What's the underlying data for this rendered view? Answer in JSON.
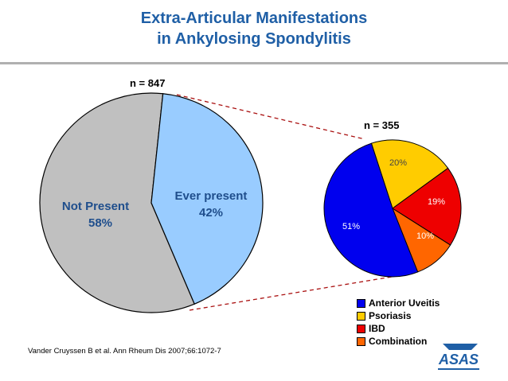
{
  "title_line1": "Extra-Articular Manifestations",
  "title_line2": "in Ankylosing Spondylitis",
  "citation": "Vander Cruyssen B et al. Ann Rheum Dis 2007;66:1072-7",
  "logo_text": "ASAS",
  "colors": {
    "title": "#1f5fa6",
    "not_present": "#c0c0c0",
    "ever_present": "#99ccff",
    "uveitis": "#0000ee",
    "psoriasis": "#ffcc00",
    "ibd": "#ee0000",
    "combination": "#ff6600"
  },
  "chart_data": [
    {
      "type": "pie",
      "n_label": "n = 847",
      "slices": [
        {
          "name": "Not Present",
          "label": "Not Present",
          "pct_label": "58%",
          "value": 58
        },
        {
          "name": "Ever present",
          "label": "Ever present",
          "pct_label": "42%",
          "value": 42
        }
      ]
    },
    {
      "type": "pie",
      "n_label": "n = 355",
      "slices": [
        {
          "name": "Anterior Uveitis",
          "pct_label": "51%",
          "value": 51
        },
        {
          "name": "Psoriasis",
          "pct_label": "20%",
          "value": 20
        },
        {
          "name": "IBD",
          "pct_label": "19%",
          "value": 19
        },
        {
          "name": "Combination",
          "pct_label": "10%",
          "value": 10
        }
      ],
      "legend": [
        "Anterior Uveitis",
        "Psoriasis",
        "IBD",
        "Combination"
      ]
    }
  ]
}
